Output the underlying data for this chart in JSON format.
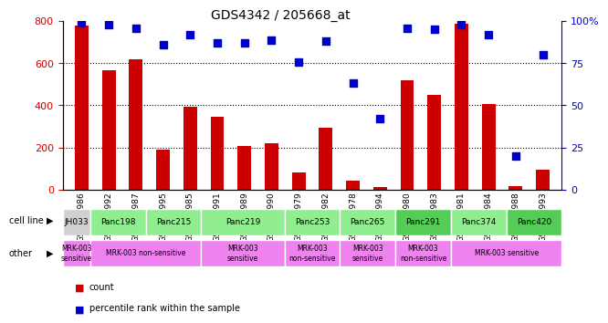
{
  "title": "GDS4342 / 205668_at",
  "samples": [
    "GSM924986",
    "GSM924992",
    "GSM924987",
    "GSM924995",
    "GSM924985",
    "GSM924991",
    "GSM924989",
    "GSM924990",
    "GSM924979",
    "GSM924982",
    "GSM924978",
    "GSM924994",
    "GSM924980",
    "GSM924983",
    "GSM924981",
    "GSM924984",
    "GSM924988",
    "GSM924993"
  ],
  "counts": [
    780,
    565,
    620,
    190,
    395,
    345,
    205,
    220,
    80,
    295,
    40,
    10,
    520,
    450,
    790,
    405,
    15,
    95
  ],
  "percentiles": [
    99,
    98,
    96,
    86,
    92,
    87,
    87,
    89,
    76,
    88,
    63,
    42,
    96,
    95,
    98,
    92,
    20,
    80
  ],
  "cell_lines": [
    {
      "name": "JH033",
      "start": 0,
      "end": 1,
      "color": "#d0d0d0"
    },
    {
      "name": "Panc198",
      "start": 1,
      "end": 3,
      "color": "#90EE90"
    },
    {
      "name": "Panc215",
      "start": 3,
      "end": 5,
      "color": "#90EE90"
    },
    {
      "name": "Panc219",
      "start": 5,
      "end": 8,
      "color": "#90EE90"
    },
    {
      "name": "Panc253",
      "start": 8,
      "end": 10,
      "color": "#90EE90"
    },
    {
      "name": "Panc265",
      "start": 10,
      "end": 12,
      "color": "#90EE90"
    },
    {
      "name": "Panc291",
      "start": 12,
      "end": 14,
      "color": "#66DD66"
    },
    {
      "name": "Panc374",
      "start": 14,
      "end": 16,
      "color": "#90EE90"
    },
    {
      "name": "Panc420",
      "start": 16,
      "end": 18,
      "color": "#66DD66"
    }
  ],
  "other_groups": [
    {
      "name": "MRK-003\nsensitive",
      "start": 0,
      "end": 1,
      "color": "#EE82EE"
    },
    {
      "name": "MRK-003 non-sensitive",
      "start": 1,
      "end": 5,
      "color": "#EE82EE"
    },
    {
      "name": "MRK-003\nsensitive",
      "start": 5,
      "end": 8,
      "color": "#EE82EE"
    },
    {
      "name": "MRK-003\nnon-sensitive",
      "start": 8,
      "end": 10,
      "color": "#EE82EE"
    },
    {
      "name": "MRK-003\nsensitive",
      "start": 10,
      "end": 12,
      "color": "#EE82EE"
    },
    {
      "name": "MRK-003\nnon-sensitive",
      "start": 12,
      "end": 14,
      "color": "#EE82EE"
    },
    {
      "name": "MRK-003 sensitive",
      "start": 14,
      "end": 18,
      "color": "#EE82EE"
    }
  ],
  "bar_color": "#CC0000",
  "scatter_color": "#0000CC",
  "ylim_left": [
    0,
    800
  ],
  "ylim_right": [
    0,
    100
  ],
  "yticks_left": [
    0,
    200,
    400,
    600,
    800
  ],
  "yticks_right": [
    0,
    25,
    50,
    75,
    100
  ],
  "ytick_labels_right": [
    "0",
    "25",
    "50",
    "75",
    "100%"
  ],
  "bg_color": "#ffffff",
  "grid_color": "#000000"
}
